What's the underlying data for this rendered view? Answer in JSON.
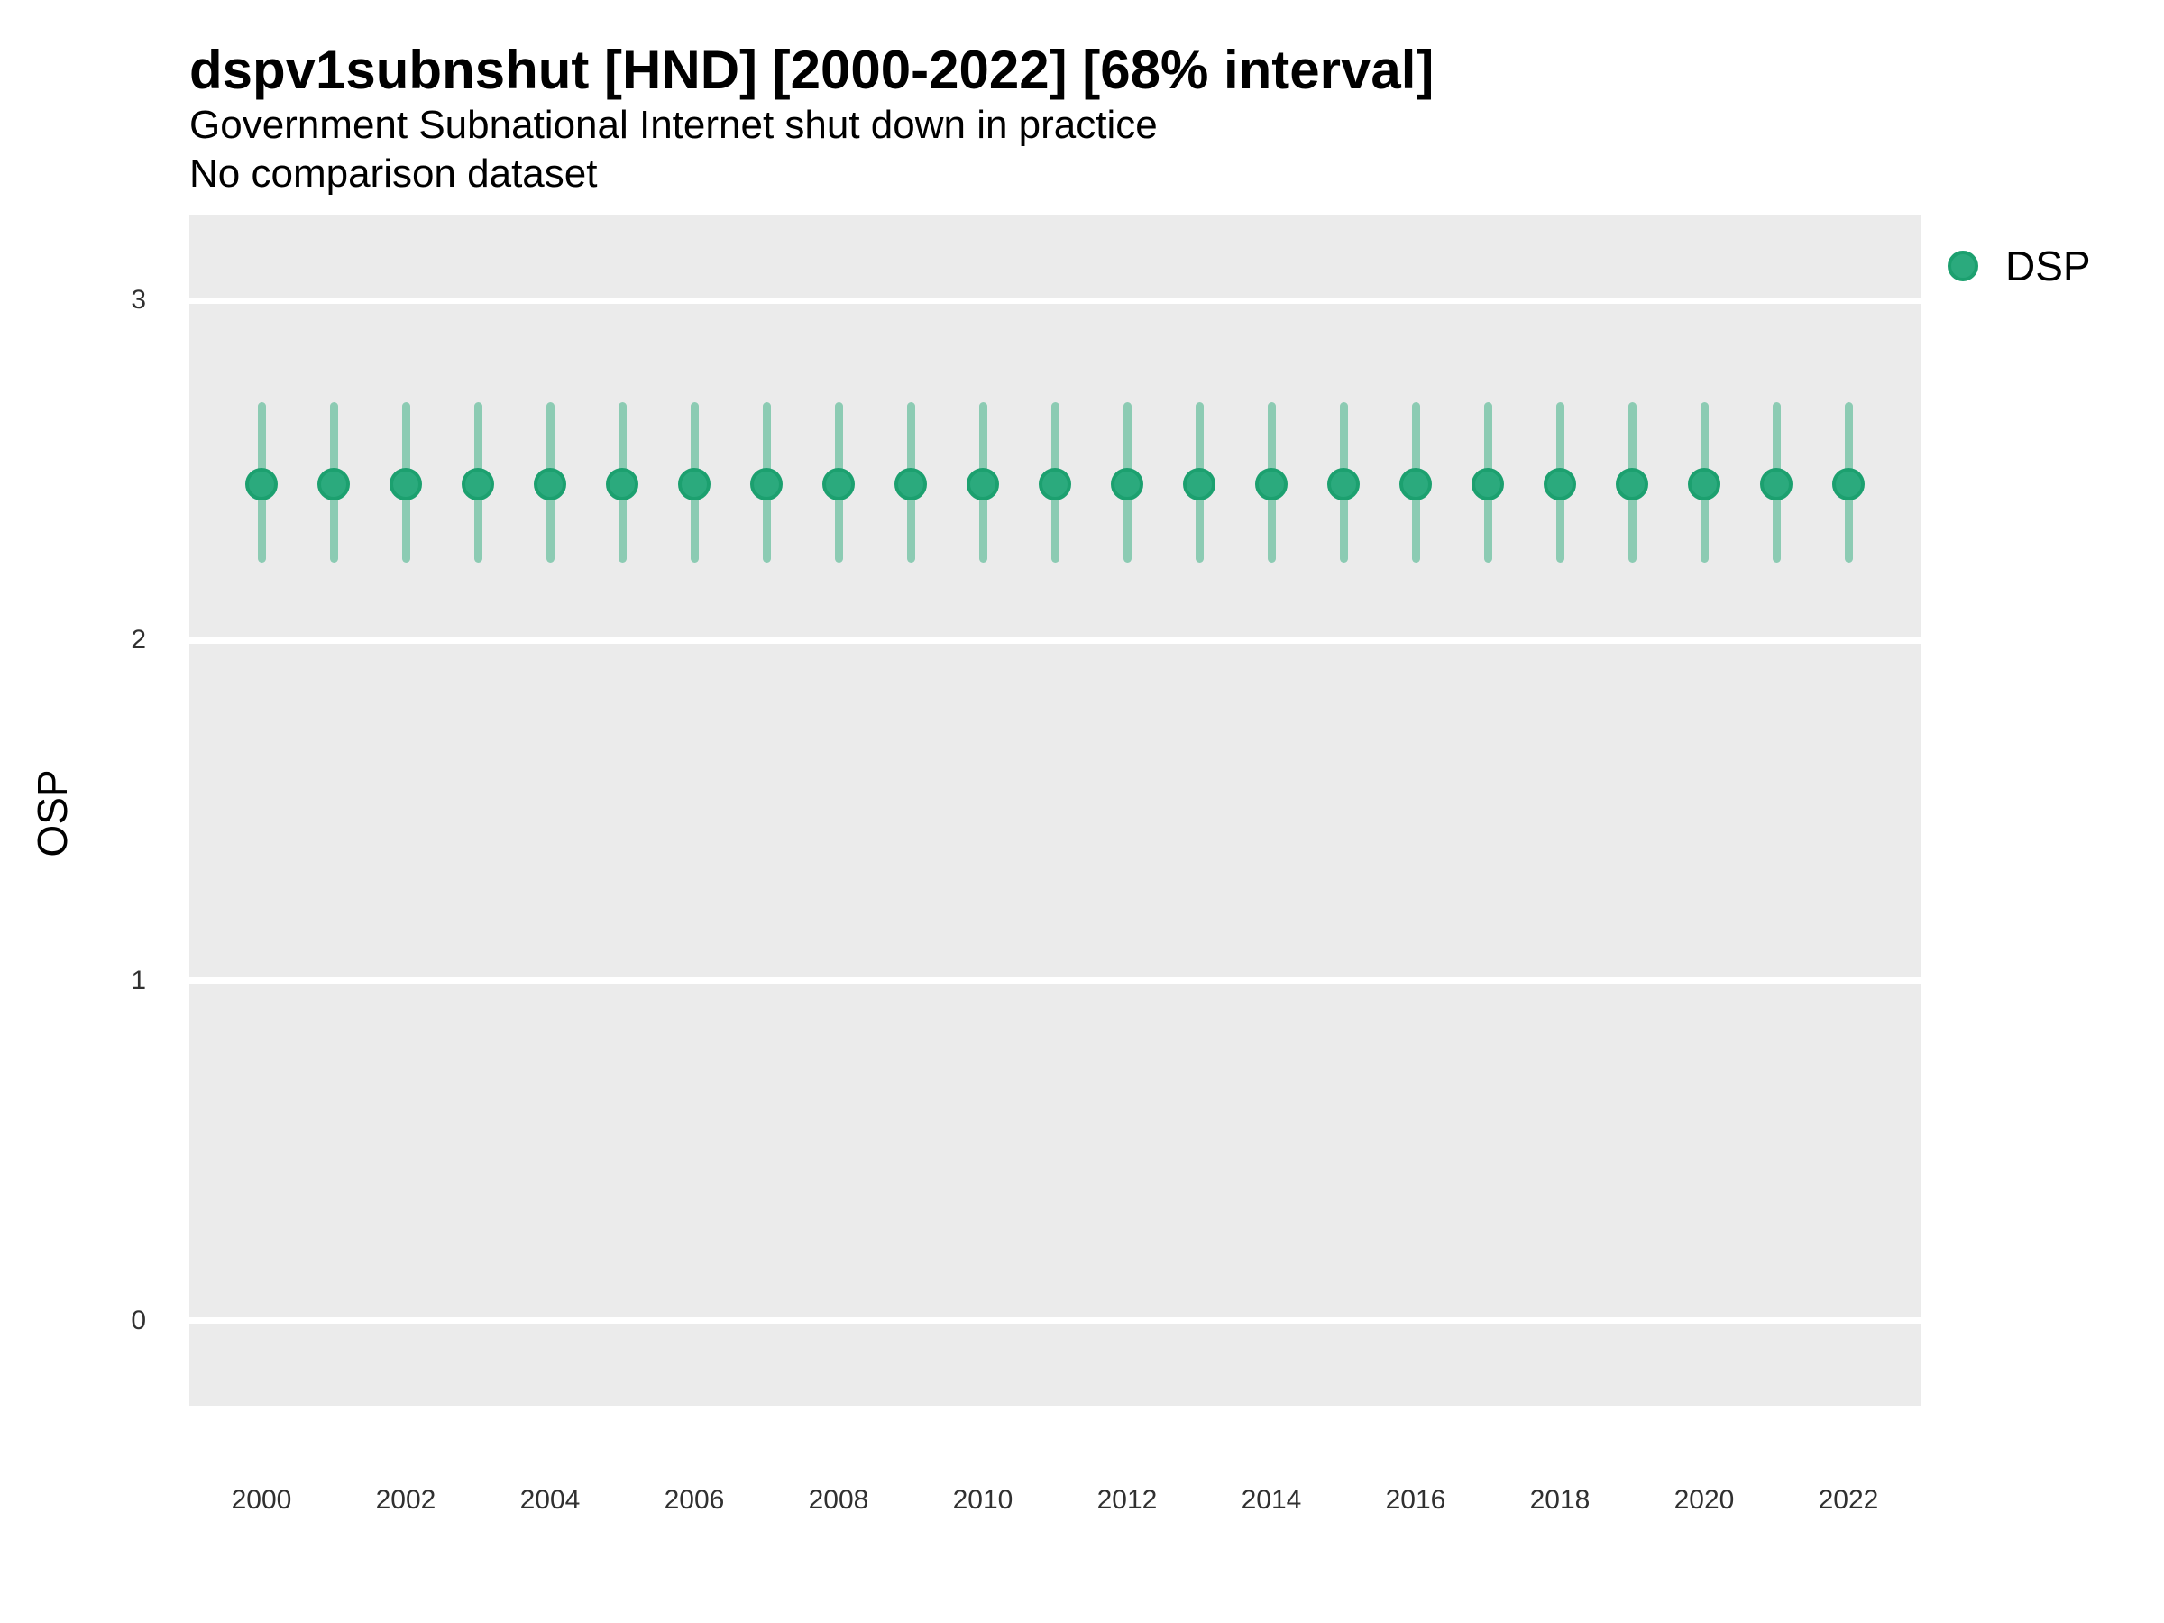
{
  "header": {
    "title": "dspv1subnshut [HND] [2000-2022] [68% interval]",
    "subtitle": "Government Subnational Internet shut down in practice",
    "subtitle2": "No comparison dataset"
  },
  "legend": {
    "items": [
      {
        "label": "DSP",
        "color": "#2BAA7D",
        "ring_color": "#1CA06F"
      }
    ]
  },
  "chart_data": {
    "type": "scatter",
    "title": "dspv1subnshut [HND] [2000-2022] [68% interval]",
    "subtitle": "Government Subnational Internet shut down in practice",
    "note": "No comparison dataset",
    "xlabel": "",
    "ylabel": "OSP",
    "interval": "68%",
    "grid": "horizontal-major-white-on-gray",
    "legend_position": "right-top",
    "x": [
      2000,
      2001,
      2002,
      2003,
      2004,
      2005,
      2006,
      2007,
      2008,
      2009,
      2010,
      2011,
      2012,
      2013,
      2014,
      2015,
      2016,
      2017,
      2018,
      2019,
      2020,
      2021,
      2022
    ],
    "series": [
      {
        "name": "DSP",
        "estimates": [
          2.46,
          2.46,
          2.46,
          2.46,
          2.46,
          2.46,
          2.46,
          2.46,
          2.46,
          2.46,
          2.46,
          2.46,
          2.46,
          2.46,
          2.46,
          2.46,
          2.46,
          2.46,
          2.46,
          2.46,
          2.46,
          2.46,
          2.46
        ],
        "lower_68": [
          2.23,
          2.23,
          2.23,
          2.23,
          2.23,
          2.23,
          2.23,
          2.23,
          2.23,
          2.23,
          2.23,
          2.23,
          2.23,
          2.23,
          2.23,
          2.23,
          2.23,
          2.23,
          2.23,
          2.23,
          2.23,
          2.23,
          2.23
        ],
        "upper_68": [
          2.7,
          2.7,
          2.7,
          2.7,
          2.7,
          2.7,
          2.7,
          2.7,
          2.7,
          2.7,
          2.7,
          2.7,
          2.7,
          2.7,
          2.7,
          2.7,
          2.7,
          2.7,
          2.7,
          2.7,
          2.7,
          2.7,
          2.7
        ]
      }
    ],
    "x_ticks": [
      2000,
      2002,
      2004,
      2006,
      2008,
      2010,
      2012,
      2014,
      2016,
      2018,
      2020,
      2022
    ],
    "y_ticks": [
      0,
      1,
      2,
      3
    ],
    "xlim": [
      1999,
      2023
    ],
    "ylim": [
      -0.25,
      3.25
    ],
    "style": {
      "panel_bg": "#EBEBEB",
      "gridline_color": "#FFFFFF",
      "point_color": "#2BAA7D",
      "point_ring_color": "#1CA06F",
      "errorbar_color": "#8CCBB3"
    }
  }
}
